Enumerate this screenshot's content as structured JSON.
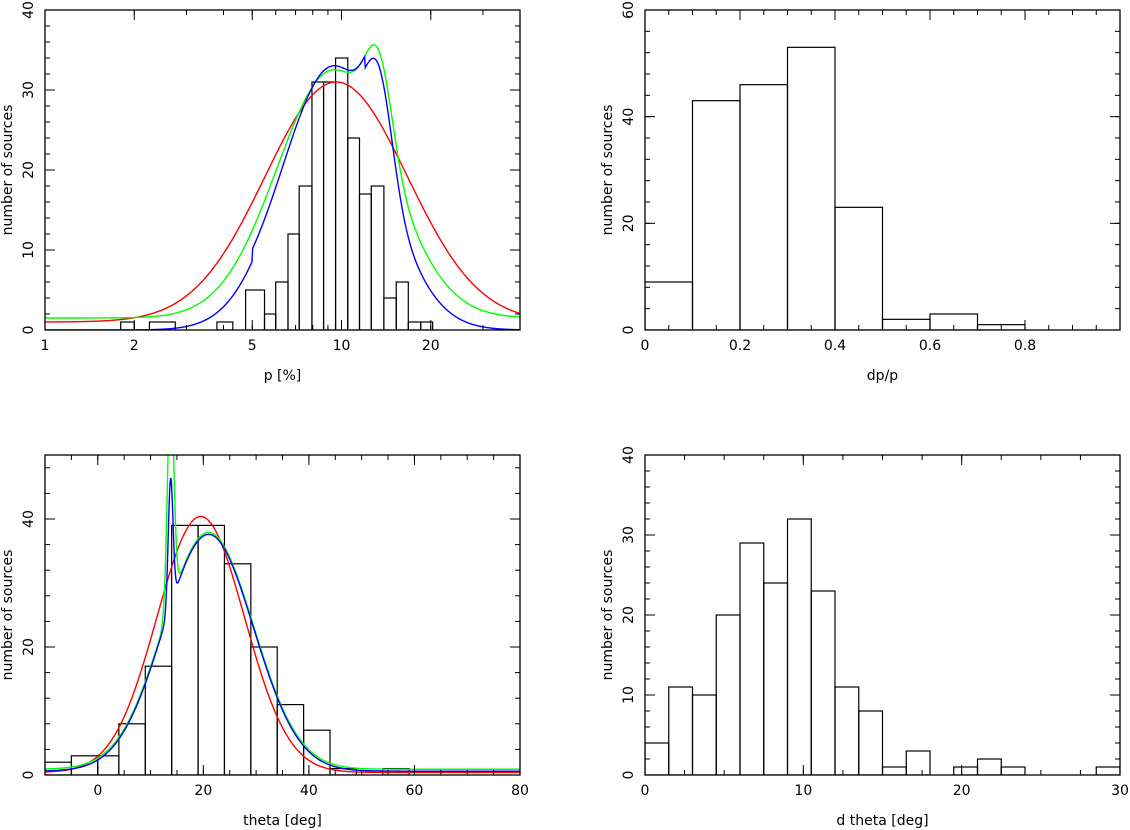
{
  "chart_data": [
    {
      "id": "p",
      "type": "histogram",
      "xlabel": "p [%]",
      "ylabel": "number of sources",
      "xscale": "log",
      "xlim": [
        1,
        40
      ],
      "ylim": [
        0,
        40
      ],
      "xticks": [
        1,
        2,
        5,
        10,
        20
      ],
      "yticks": [
        0,
        10,
        20,
        30,
        40
      ],
      "bins": [
        {
          "x0": 1.8,
          "x1": 2.0,
          "count": 1
        },
        {
          "x0": 2.25,
          "x1": 2.75,
          "count": 1
        },
        {
          "x0": 3.8,
          "x1": 4.3,
          "count": 1
        },
        {
          "x0": 4.75,
          "x1": 5.5,
          "count": 5
        },
        {
          "x0": 5.5,
          "x1": 6.0,
          "count": 2
        },
        {
          "x0": 6.0,
          "x1": 6.6,
          "count": 6
        },
        {
          "x0": 6.6,
          "x1": 7.2,
          "count": 12
        },
        {
          "x0": 7.2,
          "x1": 7.95,
          "count": 18
        },
        {
          "x0": 7.95,
          "x1": 8.7,
          "count": 31
        },
        {
          "x0": 8.7,
          "x1": 9.55,
          "count": 31
        },
        {
          "x0": 9.55,
          "x1": 10.5,
          "count": 34
        },
        {
          "x0": 10.5,
          "x1": 11.5,
          "count": 24
        },
        {
          "x0": 11.5,
          "x1": 12.6,
          "count": 17
        },
        {
          "x0": 12.6,
          "x1": 13.9,
          "count": 18
        },
        {
          "x0": 13.9,
          "x1": 15.3,
          "count": 4
        },
        {
          "x0": 15.3,
          "x1": 16.8,
          "count": 6
        },
        {
          "x0": 16.8,
          "x1": 18.5,
          "count": 1
        },
        {
          "x0": 18.5,
          "x1": 20.3,
          "count": 1
        }
      ],
      "curves": [
        {
          "color": "#ff0000",
          "baseline": 1,
          "components": [
            {
              "amp": 30,
              "mu": 9.6,
              "sigma": 0.24
            }
          ]
        },
        {
          "color": "#00ff00",
          "baseline": 1.5,
          "components": [
            {
              "amp": 31,
              "mu": 9.4,
              "sigma": 0.19
            },
            {
              "amp": 11,
              "mu": 13.4,
              "sigma": 0.045
            }
          ]
        },
        {
          "color": "#0000ff",
          "baseline": 0,
          "plateau": {
            "value": 1.5,
            "from": 5.0,
            "to": 12.0
          },
          "components": [
            {
              "amp": 31.5,
              "mu": 9.4,
              "sigma": 0.17
            },
            {
              "amp": 12,
              "mu": 13.4,
              "sigma": 0.045
            }
          ]
        }
      ]
    },
    {
      "id": "dp",
      "type": "histogram",
      "xlabel": "dp/p",
      "ylabel": "number of sources",
      "xscale": "linear",
      "xlim": [
        0,
        1
      ],
      "ylim": [
        0,
        60
      ],
      "xticks": [
        0,
        0.2,
        0.4,
        0.6,
        0.8
      ],
      "xticklabels": [
        "0",
        "0.2",
        "0.4",
        "0.6",
        "0.8"
      ],
      "yticks": [
        0,
        20,
        40,
        60
      ],
      "bins": [
        {
          "x0": 0.0,
          "x1": 0.1,
          "count": 9
        },
        {
          "x0": 0.1,
          "x1": 0.2,
          "count": 43
        },
        {
          "x0": 0.2,
          "x1": 0.3,
          "count": 46
        },
        {
          "x0": 0.3,
          "x1": 0.4,
          "count": 53
        },
        {
          "x0": 0.4,
          "x1": 0.5,
          "count": 23
        },
        {
          "x0": 0.5,
          "x1": 0.6,
          "count": 2
        },
        {
          "x0": 0.6,
          "x1": 0.7,
          "count": 3
        },
        {
          "x0": 0.7,
          "x1": 0.8,
          "count": 1
        }
      ],
      "curves": []
    },
    {
      "id": "theta",
      "type": "histogram",
      "xlabel": "theta [deg]",
      "ylabel": "number of sources",
      "xscale": "linear",
      "xlim": [
        -10,
        80
      ],
      "ylim": [
        0,
        50
      ],
      "xticks": [
        0,
        20,
        40,
        60,
        80
      ],
      "yticks": [
        0,
        20,
        40
      ],
      "bins": [
        {
          "x0": -10,
          "x1": -5,
          "count": 2
        },
        {
          "x0": -5,
          "x1": 0,
          "count": 3
        },
        {
          "x0": 0,
          "x1": 4,
          "count": 3
        },
        {
          "x0": 4,
          "x1": 9,
          "count": 8
        },
        {
          "x0": 9,
          "x1": 14,
          "count": 17
        },
        {
          "x0": 14,
          "x1": 19,
          "count": 39
        },
        {
          "x0": 19,
          "x1": 24,
          "count": 39
        },
        {
          "x0": 24,
          "x1": 29,
          "count": 33
        },
        {
          "x0": 29,
          "x1": 34,
          "count": 20
        },
        {
          "x0": 34,
          "x1": 39,
          "count": 11
        },
        {
          "x0": 39,
          "x1": 44,
          "count": 7
        },
        {
          "x0": 44,
          "x1": 49,
          "count": 1
        },
        {
          "x0": 54,
          "x1": 59,
          "count": 1
        }
      ],
      "curves": [
        {
          "color": "#ff0000",
          "baseline": 0.4,
          "components": [
            {
              "amp": 40,
              "mu": 19.5,
              "sigma": 8.3
            }
          ]
        },
        {
          "color": "#00ff00",
          "baseline": 0.9,
          "components": [
            {
              "amp": 37,
              "mu": 21,
              "sigma": 8.5
            },
            {
              "amp": 34,
              "mu": 13.8,
              "sigma": 0.6
            }
          ]
        },
        {
          "color": "#0000ff",
          "baseline": 0.6,
          "components": [
            {
              "amp": 37,
              "mu": 21,
              "sigma": 8.5
            },
            {
              "amp": 20,
              "mu": 13.8,
              "sigma": 0.45
            }
          ]
        }
      ]
    },
    {
      "id": "dtheta",
      "type": "histogram",
      "xlabel": "d theta [deg]",
      "ylabel": "number of sources",
      "xscale": "linear",
      "xlim": [
        0,
        30
      ],
      "ylim": [
        0,
        40
      ],
      "xticks": [
        0,
        10,
        20,
        30
      ],
      "yticks": [
        0,
        10,
        20,
        30,
        40
      ],
      "bins": [
        {
          "x0": 0,
          "x1": 1.5,
          "count": 4
        },
        {
          "x0": 1.5,
          "x1": 3,
          "count": 11
        },
        {
          "x0": 3,
          "x1": 4.5,
          "count": 10
        },
        {
          "x0": 4.5,
          "x1": 6,
          "count": 20
        },
        {
          "x0": 6,
          "x1": 7.5,
          "count": 29
        },
        {
          "x0": 7.5,
          "x1": 9,
          "count": 24
        },
        {
          "x0": 9,
          "x1": 10.5,
          "count": 32
        },
        {
          "x0": 10.5,
          "x1": 12,
          "count": 23
        },
        {
          "x0": 12,
          "x1": 13.5,
          "count": 11
        },
        {
          "x0": 13.5,
          "x1": 15,
          "count": 8
        },
        {
          "x0": 15,
          "x1": 16.5,
          "count": 1
        },
        {
          "x0": 16.5,
          "x1": 18,
          "count": 3
        },
        {
          "x0": 19.5,
          "x1": 21,
          "count": 1
        },
        {
          "x0": 21,
          "x1": 22.5,
          "count": 2
        },
        {
          "x0": 22.5,
          "x1": 24,
          "count": 1
        },
        {
          "x0": 28.5,
          "x1": 30,
          "count": 1
        }
      ],
      "curves": []
    }
  ]
}
